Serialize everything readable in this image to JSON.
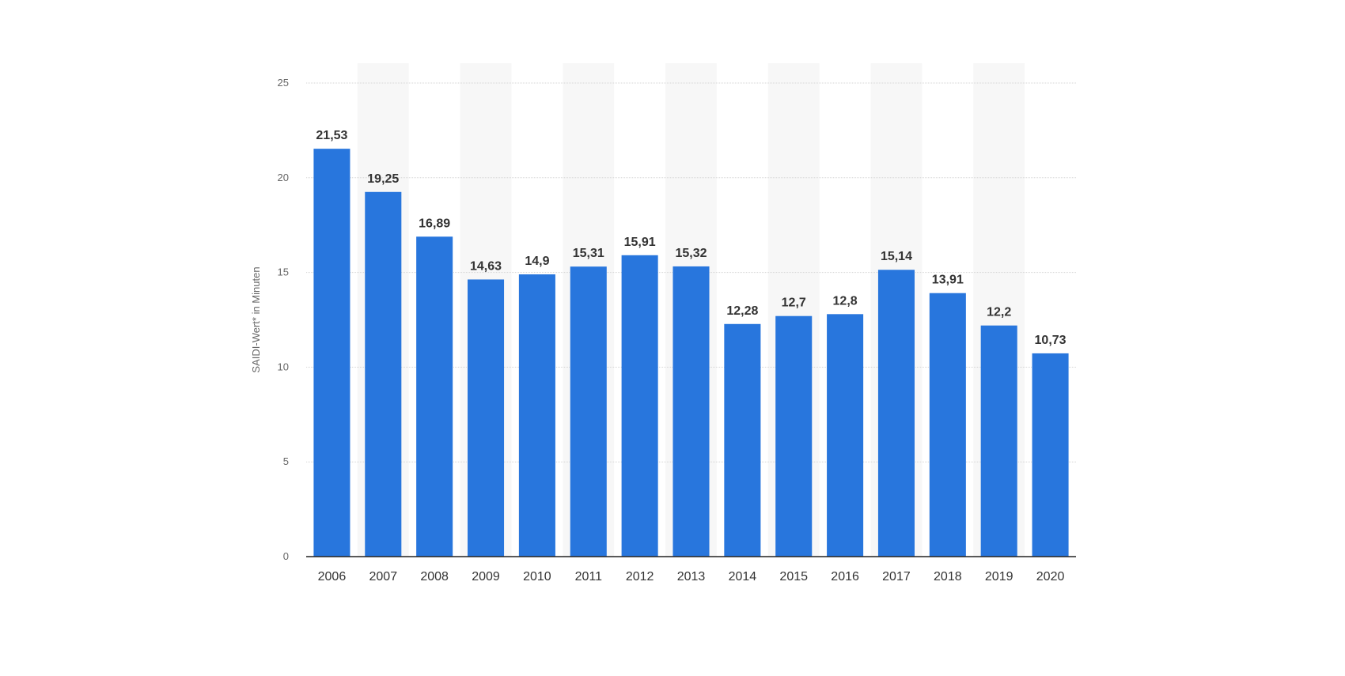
{
  "chart_data": {
    "type": "bar",
    "categories": [
      "2006",
      "2007",
      "2008",
      "2009",
      "2010",
      "2011",
      "2012",
      "2013",
      "2014",
      "2015",
      "2016",
      "2017",
      "2018",
      "2019",
      "2020"
    ],
    "values": [
      21.53,
      19.25,
      16.89,
      14.63,
      14.9,
      15.31,
      15.91,
      15.32,
      12.28,
      12.7,
      12.8,
      15.14,
      13.91,
      12.2,
      10.73
    ],
    "value_labels": [
      "21,53",
      "19,25",
      "16,89",
      "14,63",
      "14,9",
      "15,31",
      "15,91",
      "15,32",
      "12,28",
      "12,7",
      "12,8",
      "15,14",
      "13,91",
      "12,2",
      "10,73"
    ],
    "title": "",
    "xlabel": "",
    "ylabel": "SAIDI-Wert* in Minuten",
    "ylim": [
      0,
      25
    ],
    "yticks": [
      0,
      5,
      10,
      15,
      20,
      25
    ],
    "grid": true,
    "legend": "none",
    "colors": {
      "bar": "#2876dd",
      "band": "#f7f7f7",
      "grid": "#d5d5d5",
      "axis": "#222222"
    }
  }
}
